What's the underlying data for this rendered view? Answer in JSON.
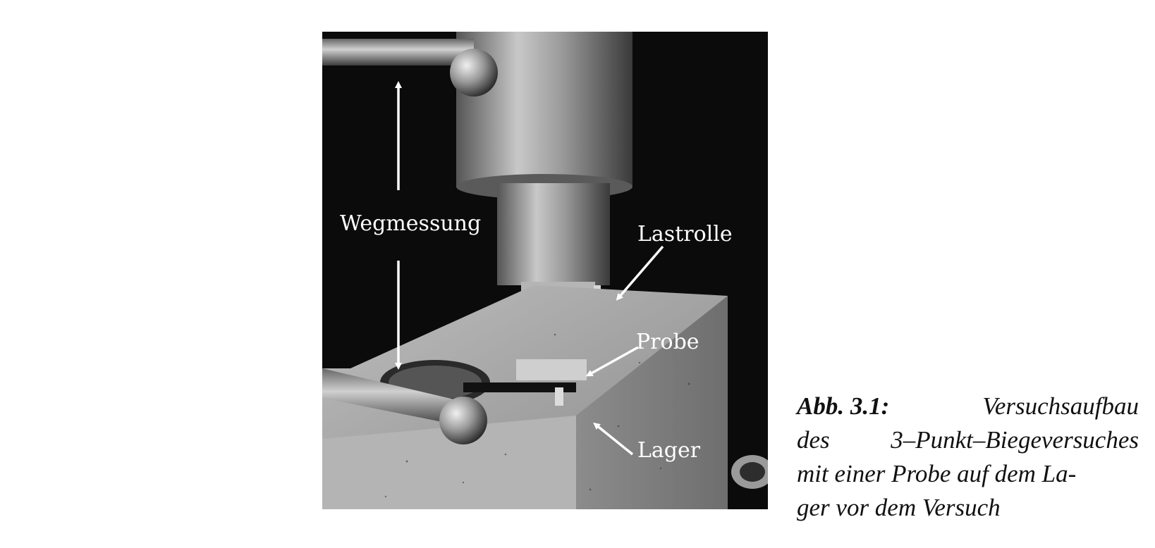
{
  "figure": {
    "labels": {
      "wegmessung": "Wegmessung",
      "lastrolle": "Lastrolle",
      "probe": "Probe",
      "lager": "Lager"
    },
    "caption": {
      "label": "Abb. 3.1:",
      "line1_end": "Versuchsaufbau",
      "line2": [
        "des",
        "3–Punkt–Biegeversuches"
      ],
      "line3": "mit einer Probe auf dem La-",
      "line4": "ger vor dem Versuch"
    }
  }
}
